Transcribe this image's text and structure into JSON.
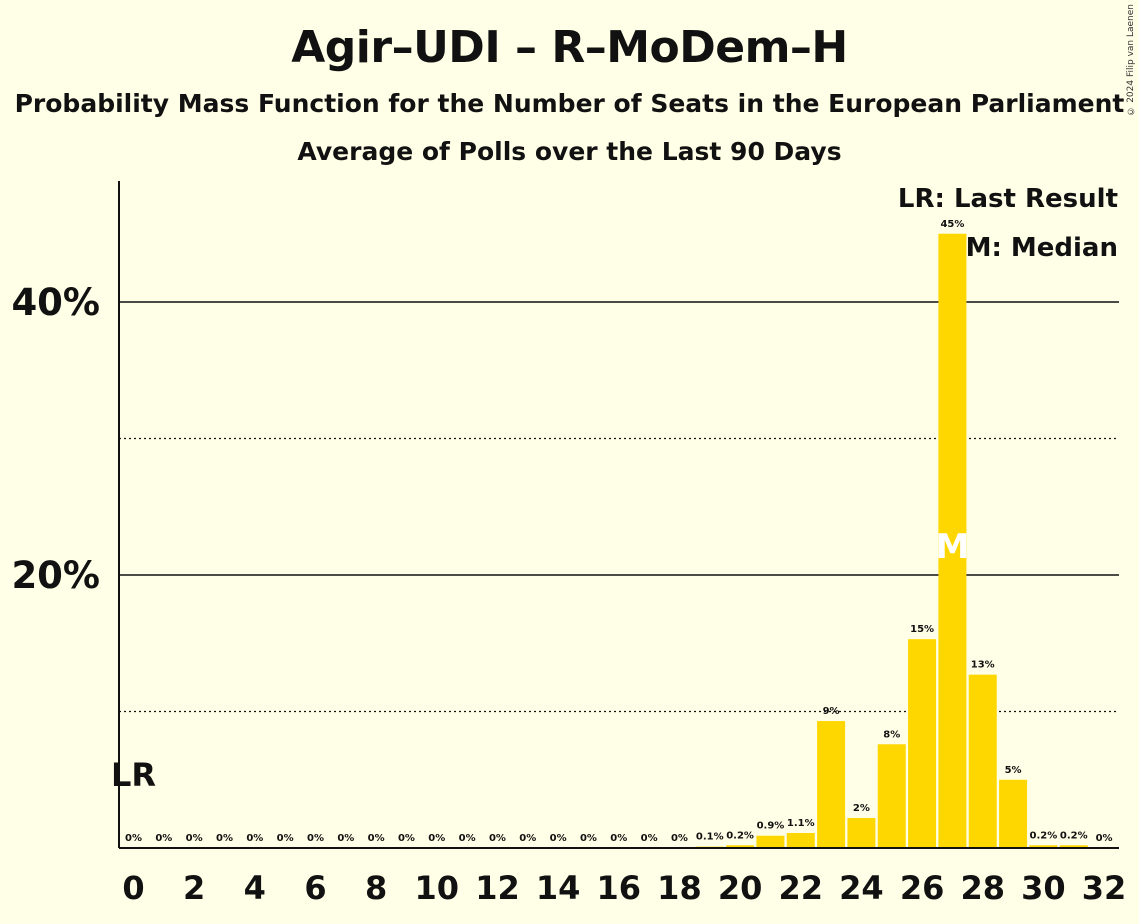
{
  "chart_data": {
    "type": "bar",
    "title": "Agir–UDI – R–MoDem–H",
    "subtitle": "Probability Mass Function for the Number of Seats in the European Parliament",
    "subtitle2": "Average of Polls over the Last 90 Days",
    "copyright": "© 2024 Filip van Laenen",
    "x": [
      0,
      1,
      2,
      3,
      4,
      5,
      6,
      7,
      8,
      9,
      10,
      11,
      12,
      13,
      14,
      15,
      16,
      17,
      18,
      19,
      20,
      21,
      22,
      23,
      24,
      25,
      26,
      27,
      28,
      29,
      30,
      31,
      32
    ],
    "values": [
      0,
      0,
      0,
      0,
      0,
      0,
      0,
      0,
      0,
      0,
      0,
      0,
      0,
      0,
      0,
      0,
      0,
      0,
      0,
      0.1,
      0.2,
      0.9,
      1.1,
      9.3,
      2.2,
      7.6,
      15.3,
      45.0,
      12.7,
      5.0,
      0.2,
      0.2,
      0
    ],
    "value_labels": [
      "0%",
      "0%",
      "0%",
      "0%",
      "0%",
      "0%",
      "0%",
      "0%",
      "0%",
      "0%",
      "0%",
      "0%",
      "0%",
      "0%",
      "0%",
      "0%",
      "0%",
      "0%",
      "0%",
      "0.1%",
      "0.2%",
      "0.9%",
      "1.1%",
      "9%",
      "2%",
      "8%",
      "15%",
      "45%",
      "13%",
      "5%",
      "0.2%",
      "0.2%",
      "0%"
    ],
    "x_ticks": [
      "0",
      "2",
      "4",
      "6",
      "8",
      "10",
      "12",
      "14",
      "16",
      "18",
      "20",
      "22",
      "24",
      "26",
      "28",
      "30",
      "32"
    ],
    "y_ticks": [
      "20%",
      "40%"
    ],
    "ylim": [
      0,
      49
    ],
    "last_result_seat": 0,
    "median_seat": 27,
    "last_result_marker": "LR",
    "median_marker": "M",
    "legend": {
      "lr": "LR: Last Result",
      "m": "M: Median",
      "placement": "top-right"
    },
    "bar_color": "#FFD700",
    "grid": "solid at 20% steps, dotted at 10% steps"
  }
}
